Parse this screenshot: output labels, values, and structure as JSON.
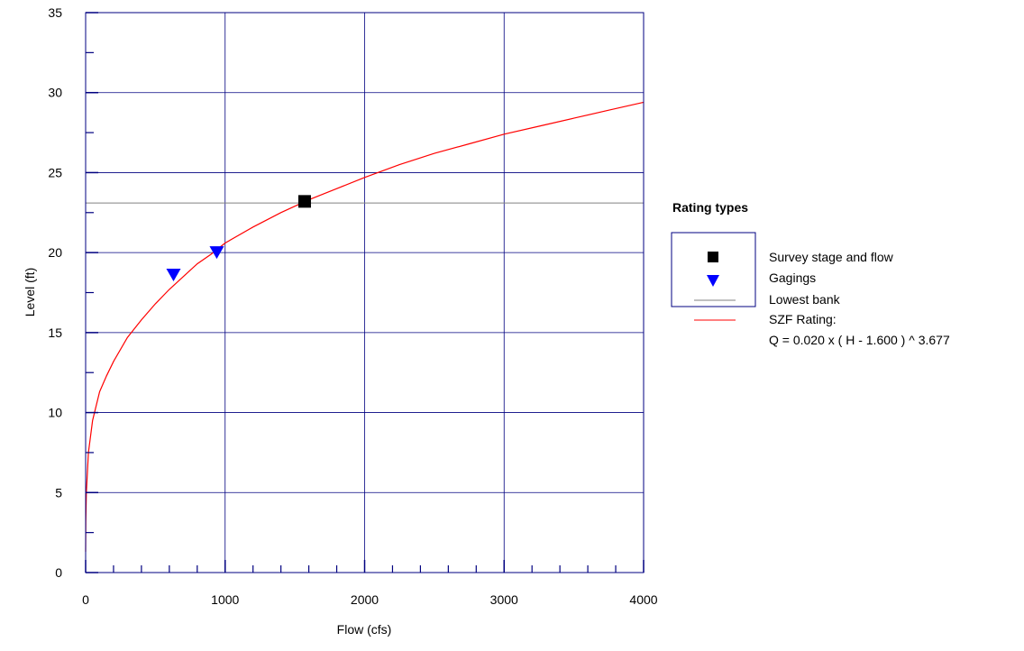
{
  "chart_data": {
    "type": "line",
    "xlabel": "Flow (cfs)",
    "ylabel": "Level (ft)",
    "xlim": [
      0,
      4000
    ],
    "ylim": [
      0,
      35
    ],
    "x_ticks": [
      0,
      1000,
      2000,
      3000,
      4000
    ],
    "y_ticks": [
      0,
      5,
      10,
      15,
      20,
      25,
      30,
      35
    ],
    "x_minor_step": 200,
    "y_minor_step": 2.5,
    "grid": true,
    "legend_title": "Rating types",
    "legend_placement": "right",
    "series": [
      {
        "name": "Survey stage and flow",
        "kind": "scatter",
        "marker": "square",
        "color": "#000000",
        "points": [
          {
            "x": 1570,
            "y": 23.2
          }
        ]
      },
      {
        "name": "Gagings",
        "kind": "scatter",
        "marker": "triangle-down",
        "color": "#0000ff",
        "points": [
          {
            "x": 630,
            "y": 18.6
          },
          {
            "x": 940,
            "y": 20.0
          }
        ]
      },
      {
        "name": "Lowest bank",
        "kind": "hline",
        "color": "#808080",
        "y": 23.1
      },
      {
        "name": "SZF Rating:",
        "equation": "Q = 0.020 x ( H - 1.600 ) ^ 3.677",
        "kind": "line",
        "color": "#ff0000",
        "x": [
          0,
          1,
          5,
          20,
          50,
          100,
          150,
          200,
          300,
          400,
          500,
          600,
          700,
          800,
          900,
          1000,
          1200,
          1400,
          1600,
          1800,
          2000,
          2250,
          2500,
          2750,
          3000,
          3250,
          3500,
          3750,
          4000
        ],
        "y": [
          1.3,
          3.2,
          5.0,
          7.5,
          9.5,
          11.3,
          12.3,
          13.2,
          14.7,
          15.8,
          16.8,
          17.7,
          18.5,
          19.3,
          19.9,
          20.6,
          21.6,
          22.5,
          23.3,
          24.0,
          24.7,
          25.5,
          26.2,
          26.8,
          27.4,
          27.9,
          28.4,
          28.9,
          29.4
        ]
      }
    ]
  }
}
